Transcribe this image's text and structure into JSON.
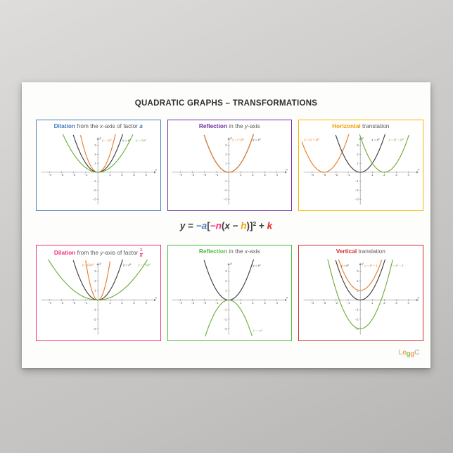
{
  "poster": {
    "title": "QUADRATIC GRAPHS – TRANSFORMATIONS",
    "paper_color": "#fdfdfc",
    "background_color": "#c9c8c6",
    "equation": {
      "segments": [
        {
          "text": "y",
          "italic": true,
          "color": "#3f3f3f"
        },
        {
          "text": " = ",
          "color": "#3f3f3f"
        },
        {
          "text": "−a",
          "bold": true,
          "italic": true,
          "color": "#4a7dbe"
        },
        {
          "text": "[",
          "color": "#3f3f3f"
        },
        {
          "text": "−n",
          "bold": true,
          "italic": true,
          "color": "#f4327e"
        },
        {
          "text": "(",
          "color": "#3f3f3f"
        },
        {
          "text": "x",
          "italic": true,
          "color": "#3f3f3f"
        },
        {
          "text": " − ",
          "color": "#3f3f3f"
        },
        {
          "text": "h",
          "bold": true,
          "italic": true,
          "color": "#f0a500"
        },
        {
          "text": ")]",
          "color": "#3f3f3f"
        },
        {
          "text": "2",
          "sup": true,
          "color": "#3f3f3f"
        },
        {
          "text": " + ",
          "color": "#3f3f3f"
        },
        {
          "text": "k",
          "bold": true,
          "italic": true,
          "color": "#e8262d"
        }
      ]
    },
    "logo": {
      "letters": [
        {
          "ch": "L",
          "color": "#c7c6c4",
          "desc": false
        },
        {
          "ch": "e",
          "color": "#f5a25a",
          "desc": false
        },
        {
          "ch": "g",
          "color": "#86c35a",
          "desc": true
        },
        {
          "ch": "g",
          "color": "#f5a25a",
          "desc": true
        },
        {
          "ch": "C",
          "color": "#bdbcba",
          "desc": false
        }
      ]
    }
  },
  "chart_data": [
    {
      "id": "dilation-x-axis",
      "type": "line",
      "border_color": "#4a7dbe",
      "heading": [
        {
          "text": "Dilation",
          "bold": true,
          "color": "#4a7dbe"
        },
        {
          "text": " from the ",
          "color": "#595959"
        },
        {
          "text": "x",
          "italic": true,
          "color": "#595959"
        },
        {
          "text": "-axis of factor ",
          "color": "#595959"
        },
        {
          "text": "a",
          "bold": true,
          "italic": true,
          "color": "#4a7dbe"
        }
      ],
      "xlabel": "x",
      "ylabel": "y",
      "xlim": [
        -4.85,
        4.95
      ],
      "ylim": [
        -3.85,
        4.3
      ],
      "xticks": [
        -4,
        -3,
        -2,
        -1,
        1,
        2,
        3,
        4
      ],
      "yticks": [
        -3,
        -2,
        -1,
        1,
        2,
        3
      ],
      "curves": [
        {
          "label": "y = 2x²",
          "color": "#e87d2a",
          "a": 2,
          "p": 0,
          "q": 0,
          "label_at": [
            0.35,
            3.45
          ]
        },
        {
          "label": "y = x²",
          "color": "#3f3f3f",
          "a": 1,
          "p": 0,
          "q": 0,
          "label_at": [
            2.05,
            3.45
          ]
        },
        {
          "label": "y = ½x²",
          "color": "#6fae3e",
          "a": 0.5,
          "p": 0,
          "q": 0,
          "label_at": [
            3.15,
            3.45
          ]
        }
      ]
    },
    {
      "id": "reflection-y-axis",
      "type": "line",
      "border_color": "#7030a0",
      "heading": [
        {
          "text": "Reflection",
          "bold": true,
          "color": "#7030a0"
        },
        {
          "text": " in the ",
          "color": "#595959"
        },
        {
          "text": "y",
          "italic": true,
          "color": "#595959"
        },
        {
          "text": "-axis",
          "color": "#595959"
        }
      ],
      "xlabel": "x",
      "ylabel": "y",
      "xlim": [
        -4.85,
        4.95
      ],
      "ylim": [
        -3.85,
        4.3
      ],
      "xticks": [
        -4,
        -3,
        -2,
        -1,
        1,
        2,
        3,
        4
      ],
      "yticks": [
        -3,
        -2,
        -1,
        1,
        2,
        3
      ],
      "curves": [
        {
          "label": "y = x²",
          "color": "#3f3f3f",
          "a": 1,
          "p": 0,
          "q": 0,
          "label_at": [
            2.0,
            3.5
          ]
        },
        {
          "label": "y = (−x)²",
          "color": "#e87d2a",
          "a": 1,
          "p": 0,
          "q": 0,
          "label_at": [
            0.3,
            3.5
          ]
        }
      ]
    },
    {
      "id": "horizontal-translation",
      "type": "line",
      "border_color": "#f3b700",
      "heading": [
        {
          "text": "Horizontal",
          "bold": true,
          "color": "#f0a000"
        },
        {
          "text": " translation",
          "color": "#595959"
        }
      ],
      "xlabel": "x",
      "ylabel": "y",
      "xlim": [
        -4.85,
        4.95
      ],
      "ylim": [
        -3.85,
        4.3
      ],
      "xticks": [
        -4,
        -3,
        -2,
        -1,
        1,
        2,
        3,
        4
      ],
      "yticks": [
        -3,
        -2,
        -1,
        1,
        2,
        3
      ],
      "curves": [
        {
          "label": "y = (x + 3)²",
          "color": "#e87d2a",
          "a": 1,
          "p": -3,
          "q": 0,
          "label_at": [
            -4.65,
            3.5
          ]
        },
        {
          "label": "y = x²",
          "color": "#3f3f3f",
          "a": 1,
          "p": 0,
          "q": 0,
          "label_at": [
            0.95,
            3.5
          ]
        },
        {
          "label": "y = (x − 2)²",
          "color": "#6fae3e",
          "a": 1,
          "p": 2,
          "q": 0,
          "label_at": [
            2.35,
            3.5
          ]
        }
      ]
    },
    {
      "id": "dilation-y-axis",
      "type": "line",
      "border_color": "#f4327e",
      "heading": [
        {
          "text": "Dilation",
          "bold": true,
          "color": "#f4327e"
        },
        {
          "text": " from the ",
          "color": "#595959"
        },
        {
          "text": "y",
          "italic": true,
          "color": "#595959"
        },
        {
          "text": "-axis of factor ",
          "color": "#595959"
        },
        {
          "frac": {
            "num": "1",
            "den": "n"
          },
          "color": "#f4327e"
        }
      ],
      "xlabel": "x",
      "ylabel": "y",
      "xlim": [
        -4.85,
        4.95
      ],
      "ylim": [
        -3.85,
        4.3
      ],
      "xticks": [
        -4,
        -3,
        -2,
        -1,
        1,
        2,
        3,
        4
      ],
      "yticks": [
        -3,
        -2,
        -1,
        1,
        2,
        3
      ],
      "curves": [
        {
          "label": "y = (2x)²",
          "color": "#e87d2a",
          "a": 4,
          "p": 0,
          "q": 0,
          "label_at": [
            -1.3,
            3.55
          ]
        },
        {
          "label": "y = x²",
          "color": "#3f3f3f",
          "a": 1,
          "p": 0,
          "q": 0,
          "label_at": [
            2.1,
            3.55
          ]
        },
        {
          "label": "y = (½x)²",
          "color": "#6fae3e",
          "a": 0.25,
          "p": 0,
          "q": 0,
          "label_at": [
            3.35,
            3.55
          ]
        }
      ]
    },
    {
      "id": "reflection-x-axis",
      "type": "line",
      "border_color": "#54b948",
      "heading": [
        {
          "text": "Reflection",
          "bold": true,
          "color": "#54b948"
        },
        {
          "text": " in the ",
          "color": "#595959"
        },
        {
          "text": "x",
          "italic": true,
          "color": "#595959"
        },
        {
          "text": "-axis",
          "color": "#595959"
        }
      ],
      "xlabel": "x",
      "ylabel": "y",
      "xlim": [
        -4.85,
        4.95
      ],
      "ylim": [
        -3.85,
        4.3
      ],
      "xticks": [
        -4,
        -3,
        -2,
        -1,
        1,
        2,
        3,
        4
      ],
      "yticks": [
        -3,
        -2,
        -1,
        1,
        2,
        3
      ],
      "curves": [
        {
          "label": "y = x²",
          "color": "#3f3f3f",
          "a": 1,
          "p": 0,
          "q": 0,
          "label_at": [
            2.0,
            3.5
          ]
        },
        {
          "label": "y = −x²",
          "color": "#6fae3e",
          "a": -1,
          "p": 0,
          "q": 0,
          "label_at": [
            2.0,
            -3.3
          ]
        }
      ]
    },
    {
      "id": "vertical-translation",
      "type": "line",
      "border_color": "#d12f2f",
      "heading": [
        {
          "text": "Vertical",
          "bold": true,
          "color": "#d12f2f"
        },
        {
          "text": " translation",
          "color": "#595959"
        }
      ],
      "xlabel": "x",
      "ylabel": "y",
      "xlim": [
        -4.85,
        4.95
      ],
      "ylim": [
        -3.85,
        4.3
      ],
      "xticks": [
        -4,
        -3,
        -2,
        -1,
        1,
        2,
        3,
        4
      ],
      "yticks": [
        -3,
        -2,
        -1,
        1,
        2,
        3
      ],
      "curves": [
        {
          "label": "y = x²",
          "color": "#3f3f3f",
          "a": 1,
          "p": 0,
          "q": 0,
          "label_at": [
            -1.6,
            3.5
          ]
        },
        {
          "label": "y = x² + 1",
          "color": "#e87d2a",
          "a": 1,
          "p": 0,
          "q": 1,
          "label_at": [
            0.35,
            3.5
          ]
        },
        {
          "label": "y = x² − 3",
          "color": "#6fae3e",
          "a": 1,
          "p": 0,
          "q": -3,
          "label_at": [
            2.5,
            3.5
          ]
        }
      ]
    }
  ]
}
